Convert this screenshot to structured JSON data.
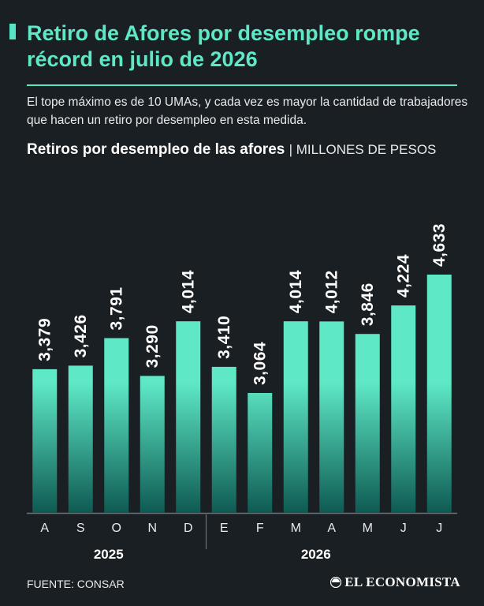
{
  "header": {
    "headline": "Retiro de Afores por desempleo rompe récord en julio de 2026",
    "subtitle": "El tope máximo es de 10 UMAs, y cada vez es mayor la cantidad de trabajadores que hacen un retiro por desempleo en esta medida.",
    "accent_color": "#57e6c4"
  },
  "chart_data": {
    "type": "bar",
    "title": "Retiros por desempleo de las afores",
    "unit": "| MILLONES DE PESOS",
    "categories": [
      "A",
      "S",
      "O",
      "N",
      "D",
      "E",
      "F",
      "M",
      "A",
      "M",
      "J",
      "J"
    ],
    "values": [
      3379,
      3426,
      3791,
      3290,
      4014,
      3410,
      3064,
      4014,
      4012,
      3846,
      4224,
      4633
    ],
    "value_labels": [
      "3,379",
      "3,426",
      "3,791",
      "3,290",
      "4,014",
      "3,410",
      "3,064",
      "4,014",
      "4,012",
      "3,846",
      "4,224",
      "4,633"
    ],
    "groups": [
      {
        "label": "2025",
        "count": 5
      },
      {
        "label": "2026",
        "count": 7
      }
    ],
    "bar_color_top": "#5ee8c6",
    "bar_color_bottom": "#0e5a52",
    "grid": false,
    "legend": "none"
  },
  "footer": {
    "source": "FUENTE: CONSAR",
    "brand": "EL ECONOMISTA",
    "brand_icon": "economista-logo-icon"
  }
}
